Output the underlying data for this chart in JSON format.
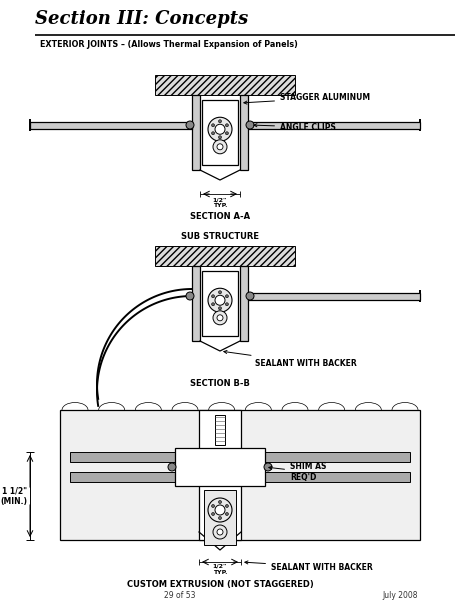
{
  "title": "Section III: Concepts",
  "bg_color": "#ffffff",
  "line_color": "#000000",
  "label_a_header": "EXTERIOR JOINTS – (Allows Thermal Expansion of Panels)",
  "label_section_aa": "SECTION A-A",
  "label_section_bb": "SECTION B-B",
  "label_custom": "CUSTOM EXTRUSION (NOT STAGGERED)",
  "label_stagger": "STAGGER ALUMINUM",
  "label_angle": "ANGLE CLIPS",
  "label_sub": "SUB STRUCTURE",
  "label_sealant_bb": "SEALANT WITH BACKER",
  "label_shim": "SHIM AS\nREQ'D",
  "label_sealant_custom": "SEALANT WITH BACKER",
  "label_half_typ_1": "1/2\"\nTYP.",
  "label_half_typ_2": "1/2\"\nTYP.",
  "label_1half": "1 1/2\"\n(MIN.)",
  "footer_left": "29 of 53",
  "footer_right": "July 2008"
}
